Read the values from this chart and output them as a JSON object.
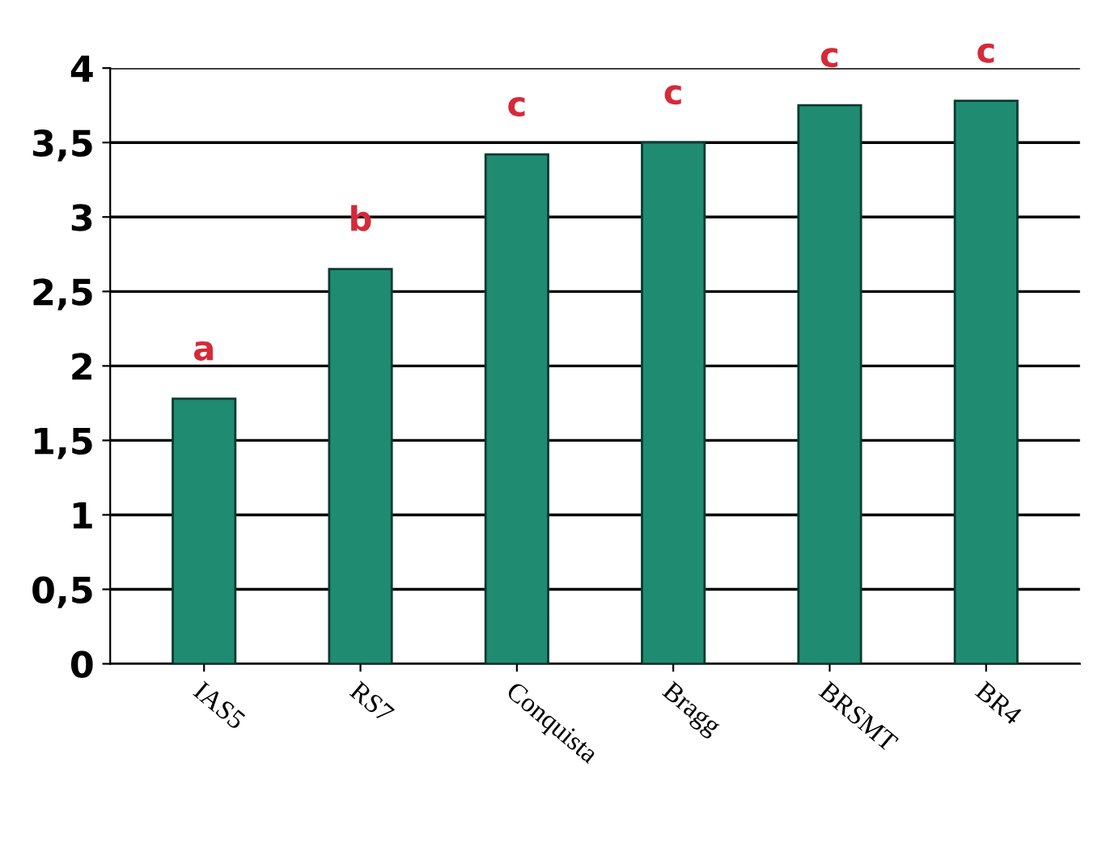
{
  "chart_data": {
    "type": "bar",
    "categories": [
      "IAS5",
      "RS7",
      "Conquista",
      "Bragg",
      "BRSMT",
      "BR4"
    ],
    "values": [
      1.78,
      2.65,
      3.42,
      3.5,
      3.75,
      3.78
    ],
    "color": "#1f8c72",
    "ylim": [
      0,
      4
    ],
    "yticks": [
      {
        "value": 0,
        "label": "0"
      },
      {
        "value": 0.5,
        "label": "0,5"
      },
      {
        "value": 1,
        "label": "1"
      },
      {
        "value": 1.5,
        "label": "1,5"
      },
      {
        "value": 2,
        "label": "2"
      },
      {
        "value": 2.5,
        "label": "2,5"
      },
      {
        "value": 3,
        "label": "3"
      },
      {
        "value": 3.5,
        "label": "3,5"
      },
      {
        "value": 4,
        "label": "4"
      }
    ],
    "grid": "y",
    "value_labels": [
      "a",
      "b",
      "c",
      "c",
      "c",
      "c"
    ]
  }
}
